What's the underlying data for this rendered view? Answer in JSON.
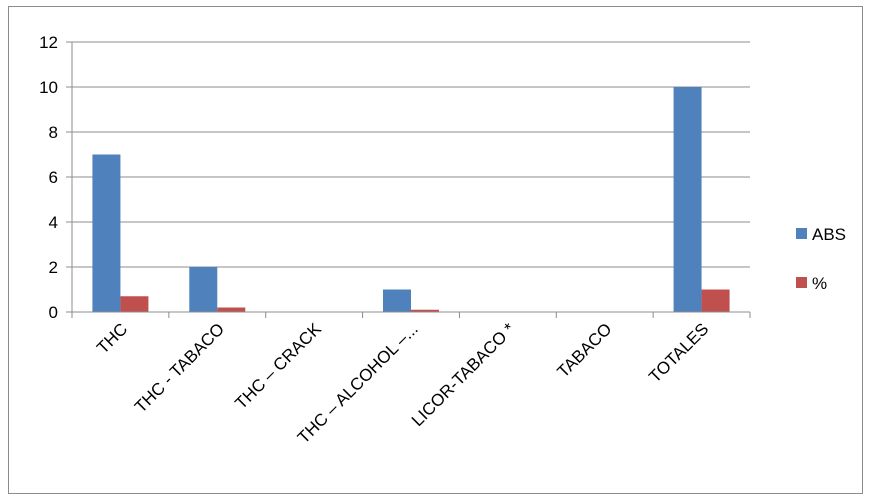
{
  "chart_data": {
    "type": "bar",
    "categories": [
      "THC",
      "THC  - TABACO",
      "THC – CRACK",
      "THC – ALCOHOL –...",
      "LICOR-TABACO *",
      "TABACO",
      "TOTALES"
    ],
    "series": [
      {
        "name": "ABS",
        "values": [
          7,
          2,
          0,
          1,
          0,
          0,
          10
        ],
        "color": "#4f81bd"
      },
      {
        "name": "%",
        "values": [
          0.7,
          0.2,
          0,
          0.1,
          0,
          0,
          1
        ],
        "color": "#c0504d"
      }
    ],
    "ylim": [
      0,
      12
    ],
    "yticks": [
      0,
      2,
      4,
      6,
      8,
      10,
      12
    ],
    "grid": true,
    "legend": "right"
  }
}
